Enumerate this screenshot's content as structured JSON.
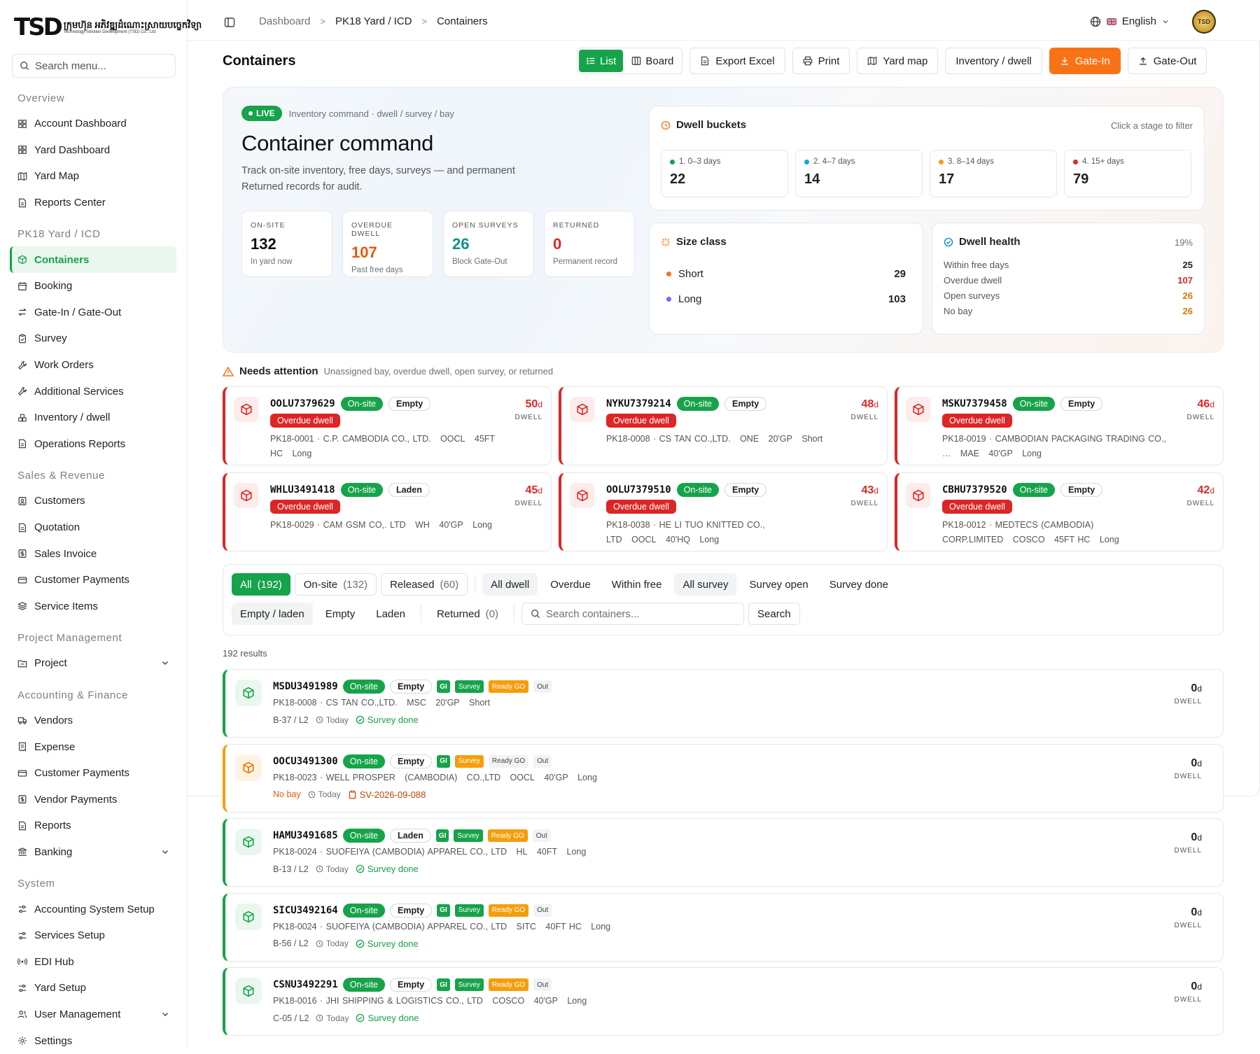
{
  "brand": {
    "mark": "TSD",
    "name_km": "ក្រុមហ៊ុន អភិវឌ្ឍដំណោះស្រាយបច្ចេកវិទ្យា",
    "name_en": "Technology Solution Development (TSD) Co., Ltd"
  },
  "sidebar": {
    "search_placeholder": "Search menu...",
    "groups": [
      {
        "label": "Overview",
        "items": [
          "Account Dashboard",
          "Yard Dashboard",
          "Yard Map",
          "Reports Center"
        ]
      },
      {
        "label": "PK18 Yard / ICD",
        "items": [
          "Containers",
          "Booking",
          "Gate-In / Gate-Out",
          "Survey",
          "Work Orders",
          "Additional Services",
          "Inventory / dwell",
          "Operations Reports"
        ]
      },
      {
        "label": "Sales & Revenue",
        "items": [
          "Customers",
          "Quotation",
          "Sales Invoice",
          "Customer Payments",
          "Service Items"
        ]
      },
      {
        "label": "Project Management",
        "items": [
          "Project"
        ]
      },
      {
        "label": "Accounting & Finance",
        "items": [
          "Vendors",
          "Expense",
          "Customer Payments",
          "Vendor Payments",
          "Reports",
          "Banking"
        ]
      },
      {
        "label": "System",
        "items": [
          "Accounting System Setup",
          "Services Setup",
          "EDI Hub",
          "Yard Setup",
          "User Management",
          "Settings"
        ]
      }
    ]
  },
  "topbar": {
    "crumbs": [
      "Dashboard",
      "PK18 Yard / ICD",
      "Containers"
    ],
    "language": "English",
    "avatar": "TSD"
  },
  "page": {
    "title": "Containers"
  },
  "toolbar": {
    "list": "List",
    "board": "Board",
    "export": "Export Excel",
    "print": "Print",
    "yard_map": "Yard map",
    "inventory": "Inventory / dwell",
    "gate_in": "Gate-In",
    "gate_out": "Gate-Out"
  },
  "hero": {
    "live": "LIVE",
    "live_sub": "Inventory command · dwell / survey / bay",
    "title": "Container command",
    "desc": "Track on-site inventory, free days, surveys — and permanent Returned records for audit.",
    "kpis": [
      {
        "label": "ON-SITE",
        "value": "132",
        "sub": "In yard now"
      },
      {
        "label": "OVERDUE DWELL",
        "value": "107",
        "sub": "Past free days"
      },
      {
        "label": "OPEN SURVEYS",
        "value": "26",
        "sub": "Block Gate-Out"
      },
      {
        "label": "RETURNED",
        "value": "0",
        "sub": "Permanent record"
      }
    ],
    "dwell": {
      "title": "Dwell buckets",
      "hint": "Click a stage to filter",
      "buckets": [
        {
          "label": "1. 0–3 days",
          "value": "22",
          "color": "#16a34a"
        },
        {
          "label": "2. 4–7 days",
          "value": "14",
          "color": "#0ea5e9"
        },
        {
          "label": "3. 8–14 days",
          "value": "17",
          "color": "#f59e0b"
        },
        {
          "label": "4. 15+ days",
          "value": "79",
          "color": "#dc2626"
        }
      ]
    },
    "size": {
      "title": "Size class",
      "rows": [
        {
          "label": "Short",
          "value": "29",
          "color": "#f97316"
        },
        {
          "label": "Long",
          "value": "103",
          "color": "#8b5cf6"
        }
      ]
    },
    "health": {
      "title": "Dwell health",
      "pct": "19%",
      "rows": [
        {
          "label": "Within free days",
          "value": "25",
          "color": "#222"
        },
        {
          "label": "Overdue dwell",
          "value": "107",
          "color": "#dc2626"
        },
        {
          "label": "Open surveys",
          "value": "26",
          "color": "#d97706"
        },
        {
          "label": "No bay",
          "value": "26",
          "color": "#d97706"
        }
      ]
    }
  },
  "attention": {
    "title": "Needs attention",
    "sub": "Unassigned bay, overdue dwell, open survey, or returned",
    "dwell_label": "DWELL",
    "cards": [
      {
        "id": "OOLU7379629",
        "status": "On-site",
        "load": "Empty",
        "flag": "Overdue dwell",
        "days": "50",
        "meta": "PK18-0001 · C.P. CAMBODIA CO., LTD.   OOCL   45FT HC   Long"
      },
      {
        "id": "NYKU7379214",
        "status": "On-site",
        "load": "Empty",
        "flag": "Overdue dwell",
        "days": "48",
        "meta": "PK18-0008 · CS TAN CO.,LTD.   ONE   20'GP   Short"
      },
      {
        "id": "MSKU7379458",
        "status": "On-site",
        "load": "Empty",
        "flag": "Overdue dwell",
        "days": "46",
        "meta": "PK18-0019 · CAMBODIAN PACKAGING TRADING CO., …   MAE   40'GP   Long"
      },
      {
        "id": "WHLU3491418",
        "status": "On-site",
        "load": "Laden",
        "flag": "Overdue dwell",
        "days": "45",
        "meta": "PK18-0029 · CAM GSM CO,. LTD   WH   40'GP   Long"
      },
      {
        "id": "OOLU7379510",
        "status": "On-site",
        "load": "Empty",
        "flag": "Overdue dwell",
        "days": "43",
        "meta": "PK18-0038 · HE LI TUO KNITTED CO., LTD   OOCL   40'HQ   Long"
      },
      {
        "id": "CBHU7379520",
        "status": "On-site",
        "load": "Empty",
        "flag": "Overdue dwell",
        "days": "42",
        "meta": "PK18-0012 · MEDTECS (CAMBODIA) CORP.LIMITED   COSCO   45FT HC   Long"
      }
    ]
  },
  "filters": {
    "row1": [
      {
        "label": "All",
        "count": "(192)"
      },
      {
        "label": "On-site",
        "count": "(132)"
      },
      {
        "label": "Released",
        "count": "(60)"
      }
    ],
    "dwell": [
      "All dwell",
      "Overdue",
      "Within free"
    ],
    "survey": [
      "All survey",
      "Survey open",
      "Survey done"
    ],
    "load": [
      "Empty / laden",
      "Empty",
      "Laden"
    ],
    "returned": {
      "label": "Returned",
      "count": "(0)"
    },
    "search_placeholder": "Search containers...",
    "search_btn": "Search"
  },
  "results": "192 results",
  "list": {
    "dwell_label": "DWELL",
    "today": "Today",
    "rows": [
      {
        "id": "MSDU3491989",
        "status": "On-site",
        "load": "Empty",
        "gi": "GI",
        "survey": "Survey",
        "ready": "Ready GO",
        "out": "Out",
        "meta": "PK18-0008 · CS TAN CO.,LTD.   MSC   20'GP   Short",
        "bay": "B-37 / L2",
        "extra": "Survey done",
        "days": "0",
        "warn": false
      },
      {
        "id": "OOCU3491300",
        "status": "On-site",
        "load": "Empty",
        "gi": "GI",
        "survey": "Survey",
        "ready": "Ready GO",
        "out": "Out",
        "meta": "PK18-0023 · WELL PROSPER   (CAMBODIA)   CO.,LTD   OOCL   40'GP   Long",
        "bay": "No bay",
        "extra": "SV-2026-09-088",
        "days": "0",
        "warn": true
      },
      {
        "id": "HAMU3491685",
        "status": "On-site",
        "load": "Laden",
        "gi": "GI",
        "survey": "Survey",
        "ready": "Ready GO",
        "out": "Out",
        "meta": "PK18-0024 · SUOFEIYA (CAMBODIA) APPAREL CO., LTD   HL   40FT   Long",
        "bay": "B-13 / L2",
        "extra": "Survey done",
        "days": "0",
        "warn": false
      },
      {
        "id": "SICU3492164",
        "status": "On-site",
        "load": "Empty",
        "gi": "GI",
        "survey": "Survey",
        "ready": "Ready GO",
        "out": "Out",
        "meta": "PK18-0024 · SUOFEIYA (CAMBODIA) APPAREL CO., LTD   SITC   40FT HC   Long",
        "bay": "B-56 / L2",
        "extra": "Survey done",
        "days": "0",
        "warn": false
      },
      {
        "id": "CSNU3492291",
        "status": "On-site",
        "load": "Empty",
        "gi": "GI",
        "survey": "Survey",
        "ready": "Ready GO",
        "out": "Out",
        "meta": "PK18-0016 · JHI SHIPPING & LOGISTICS CO., LTD   COSCO   40'GP   Long",
        "bay": "C-05 / L2",
        "extra": "Survey done",
        "days": "0",
        "warn": false
      }
    ]
  }
}
